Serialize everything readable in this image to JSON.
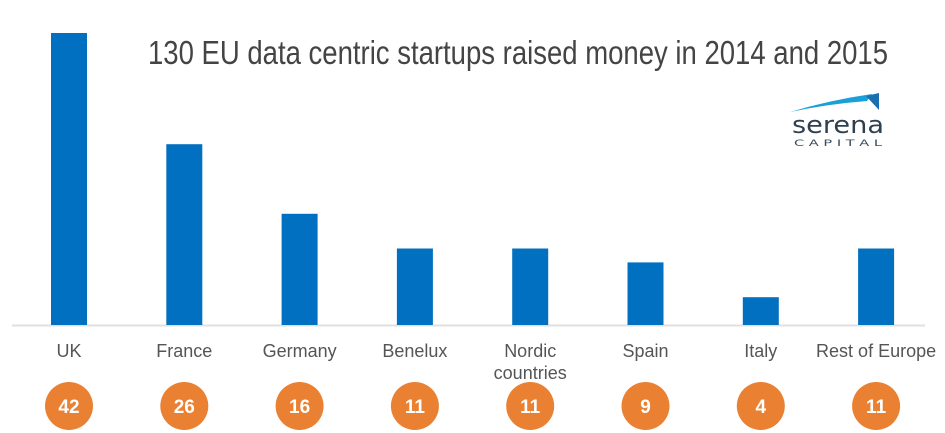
{
  "chart_data": {
    "type": "bar",
    "title": "130 EU data centric startups raised money in 2014 and 2015",
    "categories": [
      [
        "UK"
      ],
      [
        "France"
      ],
      [
        "Germany"
      ],
      [
        "Benelux"
      ],
      [
        "Nordic",
        "countries"
      ],
      [
        "Spain"
      ],
      [
        "Italy"
      ],
      [
        "Rest of Europe"
      ]
    ],
    "values": [
      42,
      26,
      16,
      11,
      11,
      9,
      4,
      11
    ],
    "data_labels": [
      "42",
      "26",
      "16",
      "11",
      "11",
      "9",
      "4",
      "11"
    ],
    "xlabel": "",
    "ylabel": "",
    "ylim": [
      0,
      42
    ],
    "grid": false,
    "legend": "none",
    "bar_color": "#0270c0",
    "label_bubble_color": "#e98032",
    "axis_color": "#e0e0e0"
  },
  "logo": {
    "name": "serena",
    "subtitle": "C A P I T A L",
    "accent_color": "#1aa0d8",
    "text_color": "#2e3f4f"
  }
}
